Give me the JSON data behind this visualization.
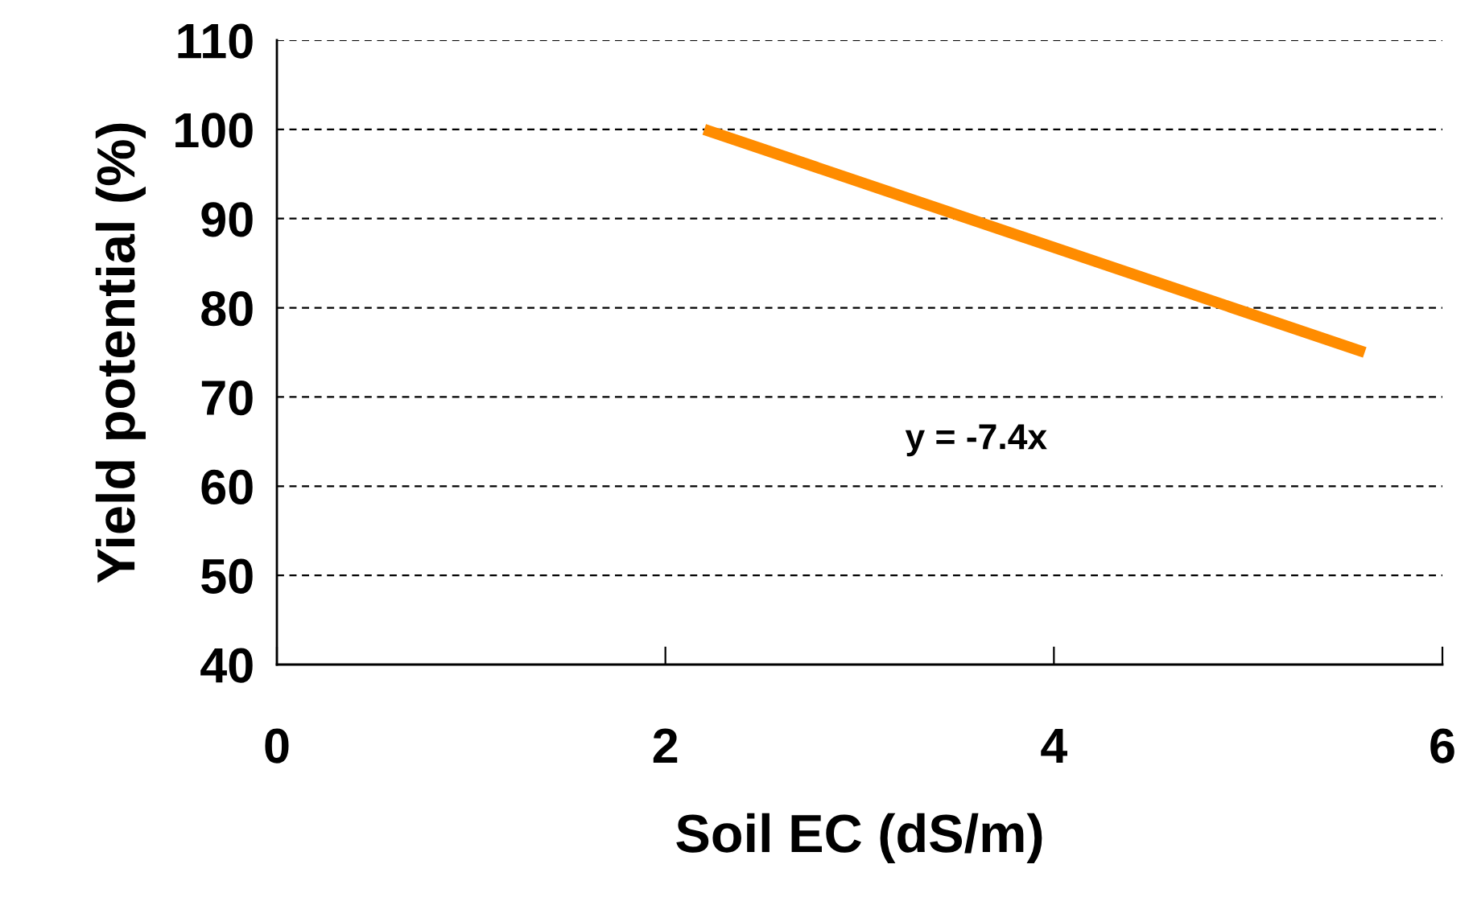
{
  "chart_data": {
    "type": "line",
    "xlabel": "Soil EC (dS/m)",
    "ylabel": "Yield potential (%)",
    "series": [
      {
        "color": "#ff8c00",
        "x": [
          2.2,
          5.6
        ],
        "values": [
          100,
          75
        ]
      }
    ],
    "xlim": [
      0,
      6
    ],
    "xticks": [
      0,
      2,
      4,
      6
    ],
    "ylim": [
      40,
      110
    ],
    "yticks": [
      40,
      50,
      60,
      70,
      80,
      90,
      100,
      110
    ],
    "grid": "y",
    "line_style": "solid",
    "marker": "none",
    "annotations": [
      "y = -7.4x"
    ]
  }
}
